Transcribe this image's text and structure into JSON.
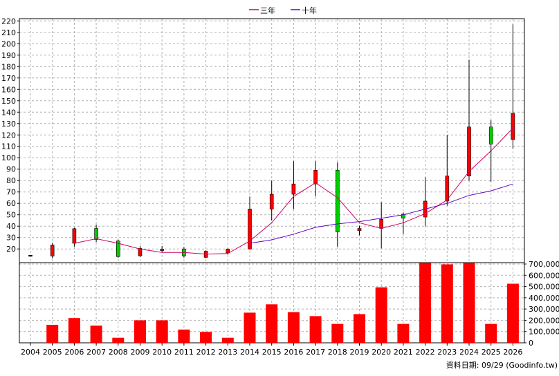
{
  "footer": {
    "source_text": "資料日期: 09/29  (Goodinfo.tw)"
  },
  "chart_data": {
    "type": "candlestick",
    "legend": [
      {
        "name": "三年",
        "color": "#cc0066"
      },
      {
        "name": "十年",
        "color": "#6600cc"
      }
    ],
    "legend_position": "top-center",
    "grid": true,
    "categories": [
      "2004",
      "2005",
      "2006",
      "2007",
      "2008",
      "2009",
      "2010",
      "2011",
      "2012",
      "2013",
      "2014",
      "2015",
      "2016",
      "2017",
      "2018",
      "2019",
      "2020",
      "2021",
      "2022",
      "2023",
      "2024",
      "2025",
      "2026"
    ],
    "price_axis": {
      "ylim": [
        8,
        222
      ],
      "ticks": [
        20,
        30,
        40,
        50,
        60,
        70,
        80,
        90,
        100,
        110,
        120,
        130,
        140,
        150,
        160,
        170,
        180,
        190,
        200,
        210,
        220
      ],
      "position": "left"
    },
    "candles": [
      {
        "open": 14.5,
        "close": 14.0,
        "high": 14.7,
        "low": 13.8,
        "color": "#000000"
      },
      {
        "open": 13.8,
        "close": 23.5,
        "high": 25.2,
        "low": 11.8,
        "color": "#ff0000"
      },
      {
        "open": 25.0,
        "close": 37.8,
        "high": 38.6,
        "low": 22.0,
        "color": "#ff0000"
      },
      {
        "open": 38.0,
        "close": 28.3,
        "high": 41.5,
        "low": 26.0,
        "color": "#00cc00"
      },
      {
        "open": 27.0,
        "close": 13.3,
        "high": 28.2,
        "low": 12.3,
        "color": "#00cc00"
      },
      {
        "open": 14.0,
        "close": 20.5,
        "high": 22.8,
        "low": 12.8,
        "color": "#ff0000"
      },
      {
        "open": 18.6,
        "close": 19.8,
        "high": 22.6,
        "low": 16.8,
        "color": "#ff0000"
      },
      {
        "open": 20.0,
        "close": 14.0,
        "high": 21.7,
        "low": 12.4,
        "color": "#00cc00"
      },
      {
        "open": 12.6,
        "close": 18.0,
        "high": 18.8,
        "low": 12.2,
        "color": "#ff0000"
      },
      {
        "open": 16.5,
        "close": 20.0,
        "high": 20.4,
        "low": 15.0,
        "color": "#ff0000"
      },
      {
        "open": 20.0,
        "close": 55.0,
        "high": 66.0,
        "low": 19.5,
        "color": "#ff0000"
      },
      {
        "open": 55.0,
        "close": 68.0,
        "high": 80.0,
        "low": 45.0,
        "color": "#ff0000"
      },
      {
        "open": 68.0,
        "close": 77.0,
        "high": 97.0,
        "low": 55.0,
        "color": "#ff0000"
      },
      {
        "open": 77.0,
        "close": 89.0,
        "high": 97.0,
        "low": 66.0,
        "color": "#ff0000"
      },
      {
        "open": 89.0,
        "close": 35.0,
        "high": 96.0,
        "low": 22.0,
        "color": "#00cc00"
      },
      {
        "open": 36.0,
        "close": 38.0,
        "high": 40.5,
        "low": 32.0,
        "color": "#ff0000"
      },
      {
        "open": 38.0,
        "close": 46.0,
        "high": 61.0,
        "low": 20.5,
        "color": "#ff0000"
      },
      {
        "open": 50.5,
        "close": 47.0,
        "high": 52.0,
        "low": 33.0,
        "color": "#00cc00"
      },
      {
        "open": 48.0,
        "close": 62.0,
        "high": 83.0,
        "low": 40.0,
        "color": "#ff0000"
      },
      {
        "open": 62.0,
        "close": 84.0,
        "high": 120.0,
        "low": 58.0,
        "color": "#ff0000"
      },
      {
        "open": 84.0,
        "close": 127.0,
        "high": 186.0,
        "low": 80.0,
        "color": "#ff0000"
      },
      {
        "open": 127.0,
        "close": 112.0,
        "high": 133.0,
        "low": 79.0,
        "color": "#00cc00"
      },
      {
        "open": 116.0,
        "close": 139.0,
        "high": 217.0,
        "low": 108.0,
        "color": "#ff0000"
      }
    ],
    "moving_averages": [
      {
        "name": "三年",
        "color": "#cc0066",
        "values": [
          null,
          null,
          25.0,
          29.0,
          25.0,
          20.0,
          17.0,
          17.0,
          15.5,
          16.0,
          27.0,
          43.0,
          66.0,
          78.0,
          65.0,
          43.0,
          38.0,
          43.0,
          51.0,
          63.0,
          88.0,
          106.0,
          126.0
        ]
      },
      {
        "name": "十年",
        "color": "#6600cc",
        "values": [
          null,
          null,
          null,
          null,
          null,
          null,
          null,
          null,
          null,
          null,
          25.0,
          28.0,
          33.0,
          39.0,
          42.0,
          44.0,
          47.0,
          50.0,
          55.0,
          60.0,
          67.0,
          71.0,
          77.0
        ]
      }
    ],
    "volume_axis": {
      "ylim": [
        0,
        700000
      ],
      "ticks": [
        0,
        100000,
        200000,
        300000,
        400000,
        500000,
        600000,
        700000
      ],
      "tick_labels": [
        "0",
        "100,000",
        "200,000",
        "300,000",
        "400,000",
        "500,000",
        "600,000",
        "700,000"
      ],
      "position": "right"
    },
    "volume_color": "#ff0000",
    "volumes": [
      0,
      160000,
      220000,
      153000,
      45000,
      200000,
      200000,
      118000,
      97000,
      45000,
      268000,
      342000,
      273000,
      237000,
      168000,
      255000,
      493000,
      168000,
      710000,
      697000,
      710000,
      168000,
      525000
    ]
  }
}
